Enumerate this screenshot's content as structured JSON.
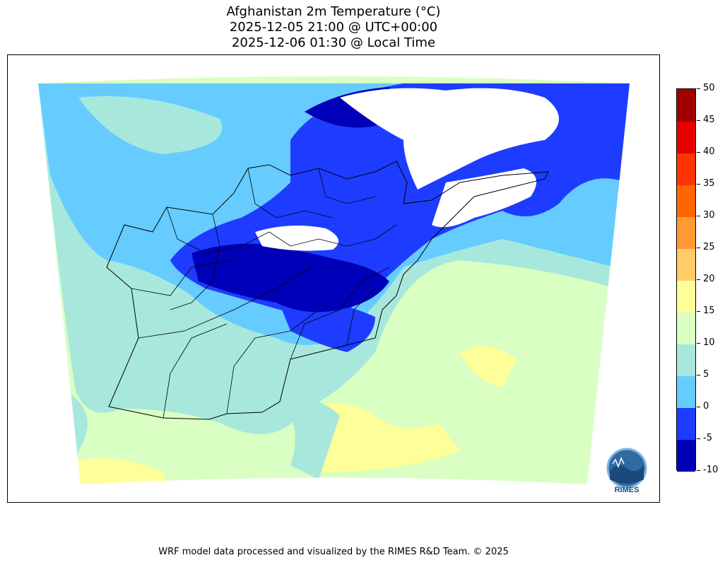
{
  "title": {
    "line1": "Afghanistan 2m Temperature (°C)",
    "line2": "2025-12-05 21:00 @ UTC+00:00",
    "line3": "2025-12-06 01:30 @ Local Time"
  },
  "colorbar": {
    "unit": "°C",
    "levels": [
      -10,
      -5,
      0,
      5,
      10,
      15,
      20,
      25,
      30,
      35,
      40,
      45,
      50
    ],
    "tick_labels": [
      "50",
      "45",
      "40",
      "35",
      "30",
      "25",
      "20",
      "15",
      "10",
      "5",
      "0",
      "-5",
      "-10"
    ],
    "colors": [
      "#0000b8",
      "#1e3cff",
      "#66ccff",
      "#a8e8dc",
      "#d9ffc2",
      "#ffff99",
      "#ffcc66",
      "#ff9933",
      "#ff6600",
      "#ff3300",
      "#e60000",
      "#a00000"
    ]
  },
  "logo": {
    "text": "RIMES"
  },
  "footer": {
    "credit": "WRF model data processed and visualized by the RIMES R&D Team. © 2025"
  }
}
